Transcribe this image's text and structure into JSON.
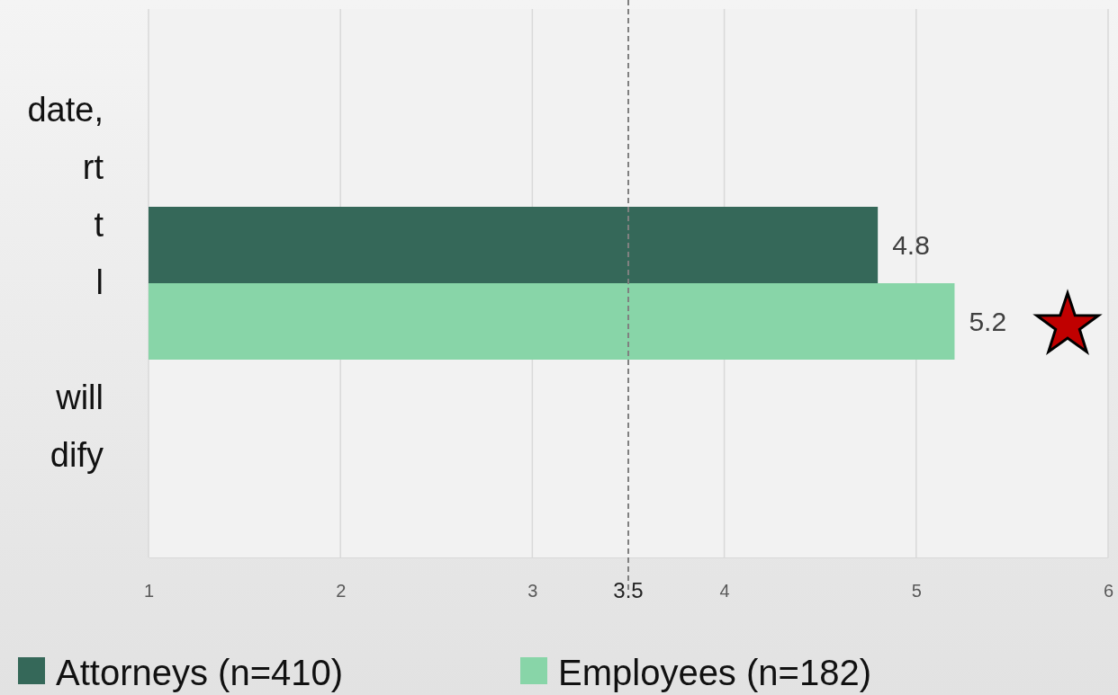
{
  "chart_data": {
    "type": "bar",
    "orientation": "horizontal",
    "categories": [
      "date,\nrt\nt\nl\n\nwill\ndify"
    ],
    "series": [
      {
        "name": "Attorneys (n=410)",
        "color": "#356859",
        "values": [
          4.8
        ]
      },
      {
        "name": "Employees (n=182)",
        "color": "#88d5a8",
        "values": [
          5.2
        ]
      }
    ],
    "xlim": [
      1,
      6
    ],
    "xticks": [
      1,
      2,
      3,
      4,
      5,
      6
    ],
    "grid": "x",
    "data_labels": true,
    "legend": "bottom",
    "ref_lines": [
      {
        "axis": "x",
        "value": 3.5,
        "label": "3.5",
        "color": "#808080",
        "line_style": "dashed"
      }
    ]
  }
}
